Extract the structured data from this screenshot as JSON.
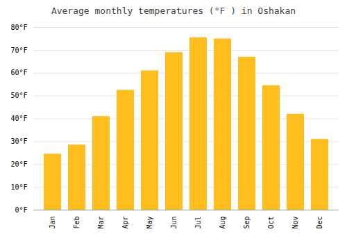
{
  "chart_data": {
    "type": "bar",
    "title": "Average monthly temperatures (°F ) in Oshakan",
    "categories": [
      "Jan",
      "Feb",
      "Mar",
      "Apr",
      "May",
      "Jun",
      "Jul",
      "Aug",
      "Sep",
      "Oct",
      "Nov",
      "Dec"
    ],
    "values": [
      24.5,
      28.5,
      41.0,
      52.5,
      61.0,
      69.0,
      75.5,
      75.0,
      67.0,
      54.5,
      42.0,
      31.0
    ],
    "color": "#FFBE1E",
    "ylim": [
      0,
      80
    ],
    "yticks": [
      {
        "value": 0,
        "label": "0°F"
      },
      {
        "value": 10,
        "label": "10°F"
      },
      {
        "value": 20,
        "label": "20°F"
      },
      {
        "value": 30,
        "label": "30°F"
      },
      {
        "value": 40,
        "label": "40°F"
      },
      {
        "value": 50,
        "label": "50°F"
      },
      {
        "value": 60,
        "label": "60°F"
      },
      {
        "value": 70,
        "label": "70°F"
      },
      {
        "value": 80,
        "label": "80°F"
      }
    ],
    "grid": true
  }
}
